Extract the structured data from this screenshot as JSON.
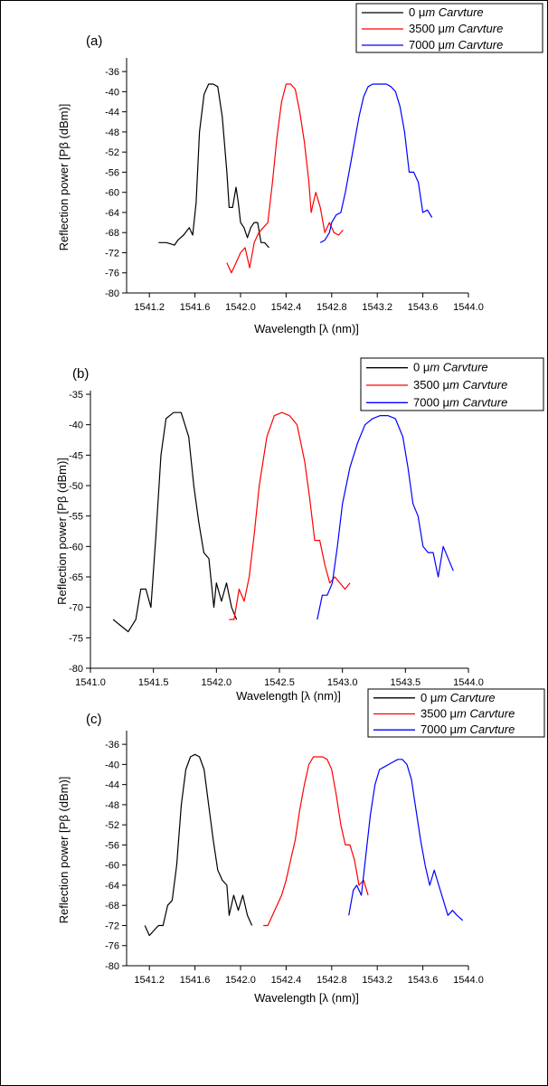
{
  "chart_data": [
    {
      "type": "line",
      "panel_label": "(a)",
      "xlabel": "Wavelength [λ (nm)]",
      "ylabel": "Reflection power [Pβ (dBm)]",
      "xlim": [
        1541.0,
        1544.0
      ],
      "ylim": [
        -80,
        -34
      ],
      "xticks": [
        1541.2,
        1541.6,
        1542.0,
        1542.4,
        1542.8,
        1543.2,
        1543.6,
        1544.0
      ],
      "xtick_labels": [
        "1541.2",
        "1541.6",
        "1542.0",
        "1542.4",
        "1542.8",
        "1543.2",
        "1543.6",
        "1544.0"
      ],
      "yticks": [
        -80,
        -76,
        -72,
        -68,
        -64,
        -60,
        -56,
        -52,
        -48,
        -44,
        -40,
        -36
      ],
      "ytick_labels": [
        "-80",
        "-76",
        "-72",
        "-68",
        "-64",
        "-60",
        "-56",
        "-52",
        "-48",
        "-44",
        "-40",
        "-36"
      ],
      "legend_position": "top-right",
      "grid": false,
      "series": [
        {
          "name": "0 μm Carvture",
          "value": "0 μ",
          "unit_italic": "m Carvture",
          "color": "#000000",
          "x": [
            1541.28,
            1541.35,
            1541.42,
            1541.45,
            1541.5,
            1541.55,
            1541.58,
            1541.61,
            1541.64,
            1541.68,
            1541.72,
            1541.76,
            1541.8,
            1541.84,
            1541.88,
            1541.9,
            1541.93,
            1541.96,
            1541.98,
            1542.0,
            1542.03,
            1542.06,
            1542.09,
            1542.12,
            1542.15,
            1542.18,
            1542.21,
            1542.25
          ],
          "y": [
            -70,
            -70,
            -70.5,
            -69.5,
            -68.5,
            -67,
            -68.5,
            -62,
            -48,
            -40.5,
            -38.5,
            -38.5,
            -39,
            -45,
            -56,
            -63,
            -63,
            -59,
            -62,
            -66,
            -67,
            -69,
            -67,
            -66,
            -66,
            -70,
            -70,
            -71
          ]
        },
        {
          "name": "3500 μm Carvture",
          "value": "3500 μ",
          "unit_italic": "m Carvture",
          "color": "#ff0000",
          "x": [
            1541.88,
            1541.92,
            1541.96,
            1542.0,
            1542.04,
            1542.08,
            1542.12,
            1542.16,
            1542.2,
            1542.24,
            1542.28,
            1542.32,
            1542.36,
            1542.4,
            1542.44,
            1542.48,
            1542.52,
            1542.56,
            1542.6,
            1542.62,
            1542.64,
            1542.66,
            1542.7,
            1542.74,
            1542.78,
            1542.82,
            1542.86,
            1542.9
          ],
          "y": [
            -74,
            -76,
            -74,
            -72,
            -71,
            -75,
            -70,
            -68,
            -67,
            -66,
            -58,
            -49,
            -42,
            -38.5,
            -38.5,
            -39.5,
            -44,
            -50,
            -58,
            -64,
            -62,
            -60,
            -63,
            -68,
            -66,
            -68,
            -68.5,
            -67.5
          ]
        },
        {
          "name": "7000 μm Carvture",
          "value": "7000 μ",
          "unit_italic": "m Carvture",
          "color": "#0000ff",
          "x": [
            1542.7,
            1542.74,
            1542.78,
            1542.8,
            1542.84,
            1542.88,
            1542.92,
            1542.96,
            1543.0,
            1543.04,
            1543.08,
            1543.12,
            1543.16,
            1543.2,
            1543.24,
            1543.28,
            1543.32,
            1543.36,
            1543.4,
            1543.44,
            1543.48,
            1543.52,
            1543.56,
            1543.6,
            1543.64,
            1543.68
          ],
          "y": [
            -70,
            -69.5,
            -68,
            -66,
            -64.5,
            -64,
            -60,
            -55,
            -50,
            -45,
            -41,
            -39,
            -38.5,
            -38.5,
            -38.5,
            -38.5,
            -39,
            -40,
            -43,
            -48,
            -56,
            -56,
            -58,
            -64,
            -63.5,
            -65
          ]
        }
      ]
    },
    {
      "type": "line",
      "panel_label": "(b)",
      "xlabel": "Wavelength [λ (nm)]",
      "ylabel": "Reflection power [Pβ (dBm)]",
      "xlim": [
        1541.0,
        1544.0
      ],
      "ylim": [
        -80,
        -35
      ],
      "xticks": [
        1541.0,
        1541.5,
        1542.0,
        1542.5,
        1543.0,
        1543.5,
        1544.0
      ],
      "xtick_labels": [
        "1541.0",
        "1541.5",
        "1542.0",
        "1542.5",
        "1543.0",
        "1543.5",
        "1544.0"
      ],
      "yticks": [
        -80,
        -75,
        -70,
        -65,
        -60,
        -55,
        -50,
        -45,
        -40,
        -35
      ],
      "ytick_labels": [
        "-80",
        "-75",
        "-70",
        "-65",
        "-60",
        "-55",
        "-50",
        "-45",
        "-40",
        "-35"
      ],
      "legend_position": "top-right",
      "grid": false,
      "series": [
        {
          "name": "0 μm Carvture",
          "value": "0 μ",
          "unit_italic": "m Carvture",
          "color": "#000000",
          "x": [
            1541.18,
            1541.24,
            1541.3,
            1541.36,
            1541.4,
            1541.44,
            1541.48,
            1541.52,
            1541.56,
            1541.6,
            1541.66,
            1541.72,
            1541.78,
            1541.82,
            1541.86,
            1541.9,
            1541.94,
            1541.98,
            1542.0,
            1542.04,
            1542.08,
            1542.12,
            1542.16
          ],
          "y": [
            -72,
            -73,
            -74,
            -72,
            -67,
            -67,
            -70,
            -58,
            -45,
            -39,
            -38,
            -38,
            -42,
            -50,
            -56,
            -61,
            -62,
            -70,
            -66,
            -69,
            -66,
            -70,
            -72
          ]
        },
        {
          "name": "3500 μm Carvture",
          "value": "3500 μ",
          "unit_italic": "m Carvture",
          "color": "#ff0000",
          "x": [
            1542.1,
            1542.14,
            1542.18,
            1542.22,
            1542.26,
            1542.3,
            1542.34,
            1542.4,
            1542.46,
            1542.52,
            1542.58,
            1542.64,
            1542.7,
            1542.74,
            1542.78,
            1542.82,
            1542.86,
            1542.9,
            1542.94,
            1542.98,
            1543.02,
            1543.06
          ],
          "y": [
            -72,
            -72,
            -67,
            -69,
            -65,
            -58,
            -50,
            -42,
            -38.5,
            -38,
            -38.5,
            -40,
            -46,
            -52,
            -59,
            -59,
            -63,
            -66,
            -65,
            -66,
            -67,
            -66
          ]
        },
        {
          "name": "7000 μm Carvture",
          "value": "7000 μ",
          "unit_italic": "m Carvture",
          "color": "#0000ff",
          "x": [
            1542.8,
            1542.84,
            1542.88,
            1542.92,
            1542.96,
            1543.0,
            1543.06,
            1543.12,
            1543.18,
            1543.24,
            1543.3,
            1543.36,
            1543.42,
            1543.48,
            1543.52,
            1543.56,
            1543.6,
            1543.64,
            1543.68,
            1543.72,
            1543.76,
            1543.8,
            1543.84,
            1543.88
          ],
          "y": [
            -72,
            -68,
            -68,
            -66,
            -60,
            -53,
            -47,
            -43,
            -40,
            -39,
            -38.5,
            -38.5,
            -39,
            -42,
            -47,
            -53,
            -55,
            -60,
            -61,
            -61,
            -65,
            -60,
            -62,
            -64
          ]
        }
      ]
    },
    {
      "type": "line",
      "panel_label": "(c)",
      "xlabel": "Wavelength [λ (nm)]",
      "ylabel": "Reflection power [Pβ (dBm)]",
      "xlim": [
        1541.0,
        1544.0
      ],
      "ylim": [
        -80,
        -34
      ],
      "xticks": [
        1541.2,
        1541.6,
        1542.0,
        1542.4,
        1542.8,
        1543.2,
        1543.6,
        1544.0
      ],
      "xtick_labels": [
        "1541.2",
        "1541.6",
        "1542.0",
        "1542.4",
        "1542.8",
        "1543.2",
        "1543.6",
        "1544.0"
      ],
      "yticks": [
        -80,
        -76,
        -72,
        -68,
        -64,
        -60,
        -56,
        -52,
        -48,
        -44,
        -40,
        -36
      ],
      "ytick_labels": [
        "-80",
        "-76",
        "-72",
        "-68",
        "-64",
        "-60",
        "-56",
        "-52",
        "-48",
        "-44",
        "-40",
        "-36"
      ],
      "legend_position": "top-right",
      "grid": false,
      "series": [
        {
          "name": "0 μm Carvture",
          "value": "0 μ",
          "unit_italic": "m Carvture",
          "color": "#000000",
          "x": [
            1541.16,
            1541.2,
            1541.24,
            1541.28,
            1541.32,
            1541.36,
            1541.4,
            1541.44,
            1541.48,
            1541.52,
            1541.56,
            1541.6,
            1541.64,
            1541.68,
            1541.72,
            1541.76,
            1541.8,
            1541.84,
            1541.88,
            1541.9,
            1541.94,
            1541.98,
            1542.02,
            1542.06,
            1542.1
          ],
          "y": [
            -72,
            -74,
            -73,
            -72,
            -72,
            -68,
            -67,
            -60,
            -48,
            -41,
            -38.5,
            -38,
            -38.5,
            -41,
            -48,
            -55,
            -61,
            -63,
            -64,
            -70,
            -66,
            -69,
            -66,
            -70,
            -72
          ]
        },
        {
          "name": "3500 μm Carvture",
          "value": "3500 μ",
          "unit_italic": "m Carvture",
          "color": "#ff0000",
          "x": [
            1542.2,
            1542.24,
            1542.28,
            1542.32,
            1542.36,
            1542.4,
            1542.44,
            1542.48,
            1542.52,
            1542.56,
            1542.6,
            1542.64,
            1542.68,
            1542.72,
            1542.76,
            1542.8,
            1542.84,
            1542.88,
            1542.92,
            1542.96,
            1543.0,
            1543.04,
            1543.08,
            1543.12
          ],
          "y": [
            -72,
            -72,
            -70,
            -68,
            -66,
            -63,
            -59,
            -55,
            -49,
            -44,
            -40,
            -38.5,
            -38.5,
            -38.5,
            -39,
            -41,
            -46,
            -52,
            -56,
            -56,
            -59,
            -64,
            -63,
            -66
          ]
        },
        {
          "name": "7000 μm Carvture",
          "value": "7000 μ",
          "unit_italic": "m Carvture",
          "color": "#0000ff",
          "x": [
            1542.95,
            1542.99,
            1543.02,
            1543.06,
            1543.1,
            1543.14,
            1543.18,
            1543.22,
            1543.26,
            1543.3,
            1543.34,
            1543.38,
            1543.42,
            1543.46,
            1543.5,
            1543.54,
            1543.58,
            1543.62,
            1543.66,
            1543.7,
            1543.74,
            1543.78,
            1543.82,
            1543.86,
            1543.9,
            1543.95
          ],
          "y": [
            -70,
            -65,
            -64,
            -66,
            -58,
            -50,
            -44,
            -41,
            -40.5,
            -40,
            -39.5,
            -39,
            -39,
            -40,
            -43,
            -49,
            -55,
            -60,
            -64,
            -61,
            -64,
            -67,
            -70,
            -69,
            -70,
            -71
          ]
        }
      ]
    }
  ]
}
